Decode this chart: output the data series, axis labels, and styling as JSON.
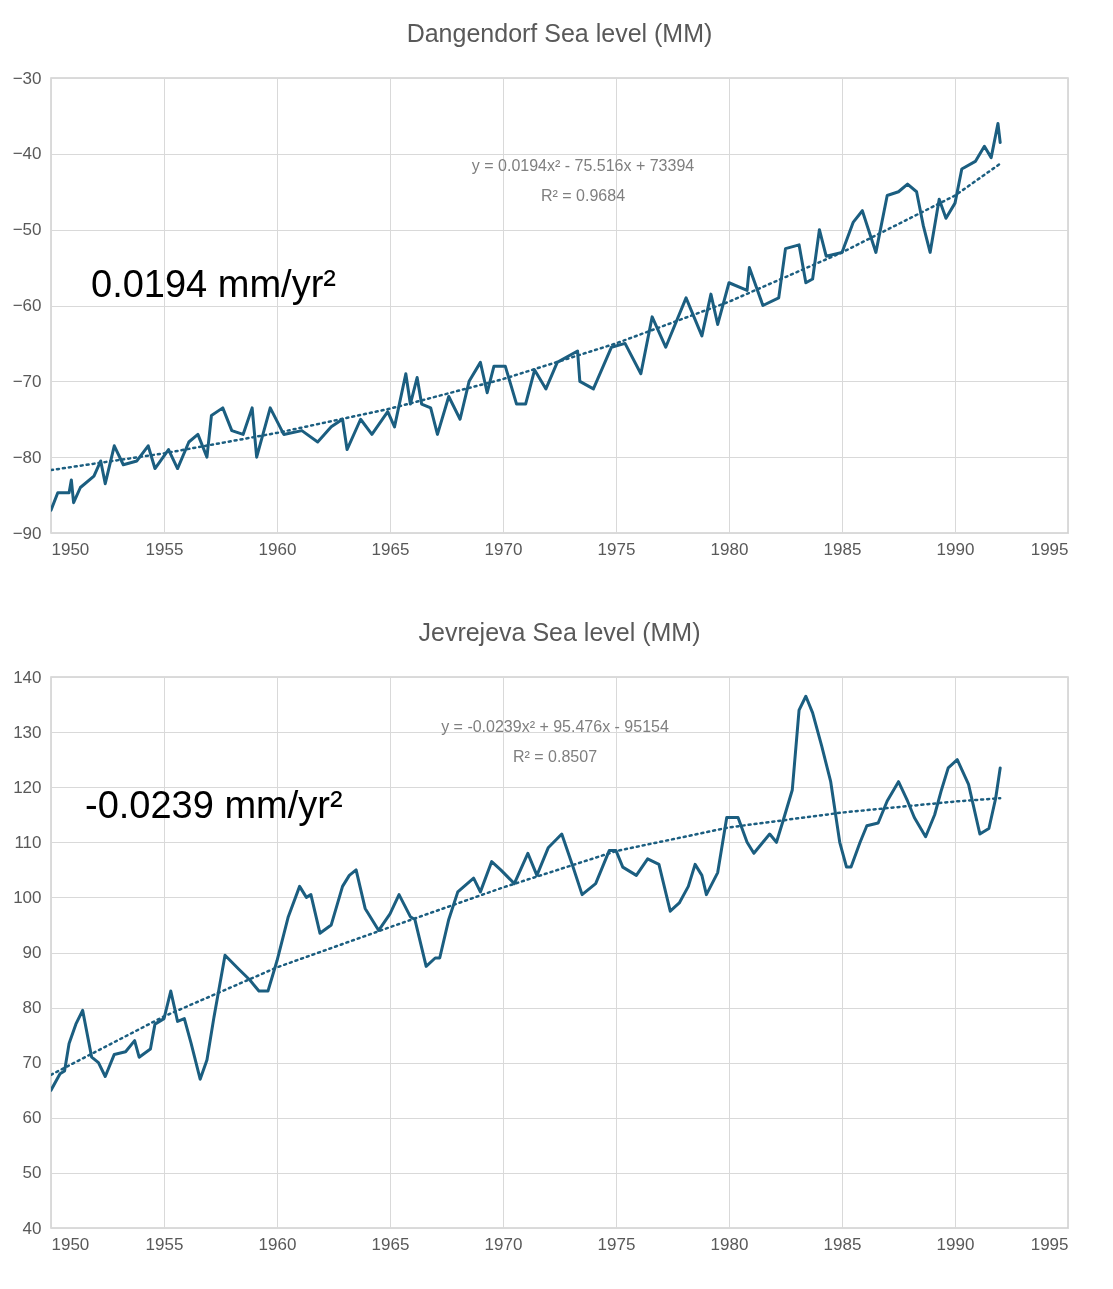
{
  "chart_data": [
    {
      "type": "line",
      "title": "Dangendorf Sea level (MM)",
      "xlim": [
        1950,
        1995
      ],
      "xticks": [
        1950,
        1955,
        1960,
        1965,
        1970,
        1975,
        1980,
        1985,
        1990,
        1995
      ],
      "ylim": [
        -90,
        -30
      ],
      "yticks": [
        -90,
        -80,
        -70,
        -60,
        -50,
        -40,
        -30
      ],
      "grid": true,
      "annotations": [
        "0.0194 mm/yr²",
        "y = 0.0194x² - 75.516x + 73394",
        "R² = 0.9684"
      ],
      "series": [
        {
          "type": "line",
          "color": "#1b5e80",
          "line_style": "solid",
          "x": [
            1950,
            1950.3,
            1950.8,
            1950.9,
            1951,
            1951.3,
            1951.9,
            1952.2,
            1952.4,
            1952.8,
            1953.2,
            1953.8,
            1954.3,
            1954.6,
            1955.2,
            1955.6,
            1956.1,
            1956.5,
            1956.9,
            1957.1,
            1957.6,
            1958,
            1958.5,
            1958.9,
            1959.1,
            1959.7,
            1960.3,
            1961.1,
            1961.8,
            1962.4,
            1962.9,
            1963.1,
            1963.7,
            1964.2,
            1964.9,
            1965.2,
            1965.7,
            1965.9,
            1966.2,
            1966.4,
            1966.8,
            1967.1,
            1967.6,
            1968.1,
            1968.5,
            1969,
            1969.3,
            1969.6,
            1970.1,
            1970.6,
            1971,
            1971.4,
            1971.9,
            1972.4,
            1973.3,
            1973.4,
            1974,
            1974.8,
            1975.4,
            1976.1,
            1976.6,
            1977.2,
            1978.1,
            1978.8,
            1979.2,
            1979.5,
            1980,
            1980.8,
            1980.9,
            1981.5,
            1982.2,
            1982.5,
            1983.1,
            1983.4,
            1983.7,
            1984,
            1984.3,
            1985,
            1985.5,
            1985.9,
            1986.5,
            1987,
            1987.5,
            1987.9,
            1988.3,
            1988.6,
            1988.9,
            1989.3,
            1989.6,
            1990,
            1990.3,
            1990.9,
            1991.3,
            1991.6,
            1991.9,
            1992
          ],
          "values": [
            -87,
            -84.7,
            -84.7,
            -83,
            -86,
            -84,
            -82.5,
            -80.5,
            -83.5,
            -78.5,
            -81,
            -80.5,
            -78.5,
            -81.5,
            -79,
            -81.5,
            -78,
            -77,
            -80,
            -74.5,
            -73.5,
            -76.5,
            -77,
            -73.5,
            -80,
            -73.5,
            -77,
            -76.5,
            -78,
            -76,
            -75,
            -79,
            -75,
            -77,
            -74,
            -76,
            -69,
            -73,
            -69.5,
            -73,
            -73.5,
            -77,
            -72,
            -75,
            -70,
            -67.5,
            -71.5,
            -68,
            -68,
            -73,
            -73,
            -68.5,
            -71,
            -67.5,
            -66,
            -70,
            -71,
            -65.5,
            -65,
            -69,
            -61.5,
            -65.5,
            -59,
            -64,
            -58.5,
            -62.5,
            -57,
            -58,
            -55,
            -60,
            -59,
            -52.5,
            -52,
            -57,
            -56.5,
            -50,
            -53.5,
            -53,
            -49,
            -47.5,
            -53,
            -45.5,
            -45,
            -44,
            -45,
            -49.5,
            -53,
            -46,
            -48.5,
            -46.5,
            -42,
            -41,
            -39,
            -40.5,
            -36,
            -38.5
          ]
        },
        {
          "type": "line",
          "color": "#1b5e80",
          "line_style": "dotted",
          "x": [
            1950,
            1955,
            1960,
            1965,
            1970,
            1975,
            1980,
            1985,
            1990,
            1992
          ],
          "values": [
            -81.7,
            -79.5,
            -76.8,
            -73.6,
            -69.7,
            -65,
            -59.5,
            -53,
            -45.5,
            -41.3
          ]
        }
      ]
    },
    {
      "type": "line",
      "title": "Jevrejeva Sea level (MM)",
      "xlim": [
        1950,
        1995
      ],
      "xticks": [
        1950,
        1955,
        1960,
        1965,
        1970,
        1975,
        1980,
        1985,
        1990,
        1995
      ],
      "ylim": [
        40,
        140
      ],
      "yticks": [
        40,
        50,
        60,
        70,
        80,
        90,
        100,
        110,
        120,
        130,
        140
      ],
      "grid": true,
      "annotations": [
        "-0.0239 mm/yr²",
        "y = -0.0239x² + 95.476x - 95154",
        "R² = 0.8507"
      ],
      "series": [
        {
          "type": "line",
          "color": "#1b5e80",
          "line_style": "solid",
          "x": [
            1950,
            1950.4,
            1950.6,
            1950.8,
            1951.1,
            1951.4,
            1951.8,
            1952.1,
            1952.4,
            1952.8,
            1953.3,
            1953.7,
            1953.9,
            1954.4,
            1954.6,
            1955,
            1955.3,
            1955.6,
            1955.9,
            1956.2,
            1956.6,
            1956.9,
            1957.2,
            1957.7,
            1958.3,
            1958.8,
            1959.2,
            1959.6,
            1960,
            1960.5,
            1961,
            1961.3,
            1961.5,
            1961.9,
            1962.4,
            1962.9,
            1963.2,
            1963.5,
            1963.9,
            1964.5,
            1965,
            1965.4,
            1965.9,
            1966.1,
            1966.6,
            1967,
            1967.2,
            1967.6,
            1968,
            1968.7,
            1969,
            1969.5,
            1969.9,
            1970.5,
            1971.1,
            1971.5,
            1972,
            1972.6,
            1973.1,
            1973.5,
            1974.1,
            1974.7,
            1975,
            1975.3,
            1975.9,
            1976.4,
            1976.9,
            1977.4,
            1977.8,
            1978.2,
            1978.5,
            1978.8,
            1979,
            1979.5,
            1979.9,
            1980.4,
            1980.8,
            1981.1,
            1981.4,
            1981.8,
            1982.1,
            1982.4,
            1982.8,
            1983.1,
            1983.4,
            1983.7,
            1984.1,
            1984.5,
            1984.9,
            1985.2,
            1985.4,
            1985.8,
            1986.1,
            1986.6,
            1987,
            1987.5,
            1987.9,
            1988.2,
            1988.7,
            1989.1,
            1989.4,
            1989.7,
            1990.1,
            1990.6,
            1991.1,
            1991.5,
            1991.8,
            1992
          ],
          "values": [
            65,
            68,
            68.5,
            73.5,
            77,
            79.5,
            71,
            70,
            67.5,
            71.5,
            72,
            74,
            71,
            72.5,
            77,
            78,
            83,
            77.5,
            78,
            73.5,
            67,
            70.5,
            78,
            89.5,
            87,
            85,
            83,
            83,
            88.5,
            96.5,
            102,
            100,
            100.5,
            93.5,
            95,
            102,
            104,
            105,
            98,
            94,
            97,
            100.5,
            96.5,
            96,
            87.5,
            89,
            89,
            96,
            101,
            103.5,
            101,
            106.5,
            105,
            102.5,
            108,
            104,
            109,
            111.5,
            105.5,
            100.5,
            102.5,
            108.5,
            108.5,
            105.5,
            104,
            107,
            106,
            97.5,
            99,
            102,
            106,
            104,
            100.5,
            104.5,
            114.5,
            114.5,
            110,
            108,
            109.5,
            111.5,
            110,
            114,
            119.5,
            134,
            136.5,
            133.5,
            127.5,
            121,
            110,
            105.5,
            105.5,
            110,
            113,
            113.5,
            117.5,
            121,
            117.5,
            114.5,
            111,
            115,
            119.5,
            123.5,
            125,
            120.5,
            111.5,
            112.5,
            118,
            123.5
          ]
        },
        {
          "type": "line",
          "color": "#1b5e80",
          "line_style": "dotted",
          "x": [
            1950,
            1955,
            1960,
            1965,
            1970,
            1975,
            1980,
            1985,
            1990,
            1992
          ],
          "values": [
            67.8,
            78.4,
            87.3,
            94.6,
            101.8,
            108.4,
            112.7,
            115.4,
            117.4,
            118
          ]
        }
      ]
    }
  ]
}
